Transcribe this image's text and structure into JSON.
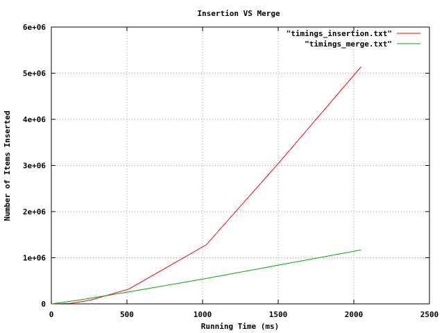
{
  "chart_data": {
    "type": "line",
    "title": "Insertion VS Merge",
    "xlabel": "Running Time (ms)",
    "ylabel": "Number of Items Inserted",
    "xlim": [
      0,
      2500
    ],
    "ylim": [
      0,
      6000000
    ],
    "xticks": [
      0,
      500,
      1000,
      1500,
      2000,
      2500
    ],
    "yticks": [
      0,
      1000000,
      2000000,
      3000000,
      4000000,
      5000000,
      6000000
    ],
    "xtick_labels": [
      "0",
      "500",
      "1000",
      "1500",
      "2000",
      "2500"
    ],
    "ytick_labels": [
      "0",
      "1e+06",
      "2e+06",
      "3e+06",
      "4e+06",
      "5e+06",
      "6e+06"
    ],
    "grid": true,
    "legend_position": "top-right",
    "series": [
      {
        "name": "\"timings_insertion.txt\"",
        "color": "#ff0000",
        "x": [
          0,
          128,
          256,
          512,
          1024,
          1500,
          2048
        ],
        "y": [
          0,
          10000,
          80000,
          320000,
          1280000,
          3040000,
          5140000
        ]
      },
      {
        "name": "\"timings_merge.txt\"",
        "color": "#00aa00",
        "x": [
          0,
          128,
          256,
          512,
          1024,
          2048
        ],
        "y": [
          0,
          55000,
          120000,
          260000,
          550000,
          1170000
        ]
      }
    ]
  }
}
